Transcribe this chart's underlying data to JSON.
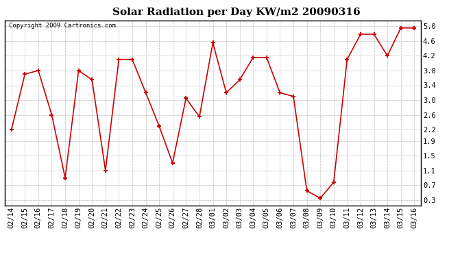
{
  "title": "Solar Radiation per Day KW/m2 20090316",
  "copyright_text": "Copyright 2009 Cartronics.com",
  "dates": [
    "02/14",
    "02/15",
    "02/16",
    "02/17",
    "02/18",
    "02/19",
    "02/20",
    "02/21",
    "02/22",
    "02/23",
    "02/24",
    "02/25",
    "02/26",
    "02/27",
    "02/28",
    "03/01",
    "03/02",
    "03/03",
    "03/04",
    "03/05",
    "03/06",
    "03/07",
    "03/08",
    "03/09",
    "03/10",
    "03/11",
    "03/12",
    "03/13",
    "03/14",
    "03/15",
    "03/16"
  ],
  "values": [
    2.2,
    3.7,
    3.8,
    2.6,
    0.9,
    3.8,
    3.55,
    1.1,
    4.1,
    4.1,
    3.2,
    2.3,
    1.3,
    3.05,
    2.55,
    4.55,
    3.2,
    3.55,
    4.15,
    4.15,
    3.2,
    3.1,
    0.55,
    0.35,
    0.78,
    4.1,
    4.78,
    4.78,
    4.2,
    4.95,
    4.95
  ],
  "line_color": "#cc0000",
  "marker_color": "#cc0000",
  "bg_color": "#ffffff",
  "plot_bg_color": "#ffffff",
  "grid_color": "#bbbbbb",
  "title_fontsize": 11,
  "tick_fontsize": 7.5,
  "copyright_fontsize": 6.5,
  "ylim": [
    0.15,
    5.15
  ],
  "yticks": [
    0.3,
    0.7,
    1.1,
    1.5,
    1.9,
    2.2,
    2.6,
    3.0,
    3.4,
    3.8,
    4.2,
    4.6,
    5.0
  ]
}
